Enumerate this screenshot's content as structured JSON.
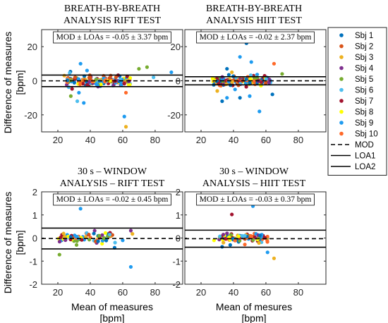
{
  "figure": {
    "ylabel_line1": "Difference of measures",
    "ylabel_line2": "[bpm]",
    "xlabel_left_line1": "Mean of measures",
    "xlabel_right_line1": "Mean of mesures",
    "xlabel_line2": "[bpm]"
  },
  "legend": {
    "placement": "right",
    "entries": [
      {
        "label": "Sbj 1",
        "color": "#0072BD",
        "kind": "point"
      },
      {
        "label": "Sbj 2",
        "color": "#D95319",
        "kind": "point"
      },
      {
        "label": "Sbj 3",
        "color": "#EDB120",
        "kind": "point"
      },
      {
        "label": "Sbj 4",
        "color": "#7E2F8E",
        "kind": "point"
      },
      {
        "label": "Sbj 5",
        "color": "#77AC30",
        "kind": "point"
      },
      {
        "label": "Sbj 6",
        "color": "#4DBEEE",
        "kind": "point"
      },
      {
        "label": "Sbj 7",
        "color": "#A2142F",
        "kind": "point"
      },
      {
        "label": "Sbj 8",
        "color": "#FFFF00",
        "kind": "point"
      },
      {
        "label": "Sbj 9",
        "color": "#1E9BF0",
        "kind": "point"
      },
      {
        "label": "Sbj 10",
        "color": "#FF6929",
        "kind": "point"
      },
      {
        "label": "MOD",
        "color": "#000000",
        "kind": "dashed"
      },
      {
        "label": "LOA1",
        "color": "#000000",
        "kind": "solid"
      },
      {
        "label": "LOA2",
        "color": "#000000",
        "kind": "solid"
      }
    ]
  },
  "chart_data": [
    {
      "type": "scatter",
      "title_line1": "BREATH-BY-BREATH",
      "title_line2": "ANALYSIS  RIFT TEST",
      "annotation": "MOD ± LOAs = -0.05 ± 3.37 bpm",
      "xlim": [
        10,
        97
      ],
      "ylim": [
        -30,
        30
      ],
      "xticks": [
        20,
        40,
        60,
        80
      ],
      "yticks": [
        -20,
        0,
        20
      ],
      "mod": -0.05,
      "loa_upper": 3.32,
      "loa_lower": -3.42,
      "spread": {
        "x_center": 45,
        "x_range": 20,
        "y_sd": 1.5,
        "n": 170,
        "seed": 11
      },
      "points": [
        {
          "x": 34,
          "y": 10,
          "s": 9
        },
        {
          "x": 33,
          "y": -7,
          "s": 9
        },
        {
          "x": 32,
          "y": -12,
          "s": 6
        },
        {
          "x": 36,
          "y": -13,
          "s": 9
        },
        {
          "x": 38,
          "y": 6,
          "s": 9
        },
        {
          "x": 61,
          "y": -21,
          "s": 9
        },
        {
          "x": 62,
          "y": -27,
          "s": 3
        },
        {
          "x": 62,
          "y": -7,
          "s": 10
        },
        {
          "x": 70,
          "y": 7,
          "s": 5
        },
        {
          "x": 75,
          "y": 8,
          "s": 5
        },
        {
          "x": 79,
          "y": 2,
          "s": 6
        },
        {
          "x": 90,
          "y": 5,
          "s": 9
        },
        {
          "x": 28,
          "y": -9,
          "s": 5
        },
        {
          "x": 24,
          "y": 3,
          "s": 3
        }
      ]
    },
    {
      "type": "scatter",
      "title_line1": "BREATH-BY-BREATH",
      "title_line2": "ANALYSIS  HIIT TEST",
      "annotation": "MOD ± LOAs = -0.02 ± 2.37 bpm",
      "xlim": [
        10,
        97
      ],
      "ylim": [
        -30,
        30
      ],
      "xticks": [
        20,
        40,
        60,
        80
      ],
      "yticks": [
        -20,
        0,
        20
      ],
      "mod": -0.02,
      "loa_upper": 2.35,
      "loa_lower": -2.39,
      "spread": {
        "x_center": 45,
        "x_range": 18,
        "y_sd": 1.4,
        "n": 160,
        "seed": 23
      },
      "points": [
        {
          "x": 48,
          "y": 22,
          "s": 1
        },
        {
          "x": 44,
          "y": 14,
          "s": 9
        },
        {
          "x": 51,
          "y": 11,
          "s": 9
        },
        {
          "x": 36,
          "y": 7,
          "s": 1
        },
        {
          "x": 39,
          "y": 5,
          "s": 3
        },
        {
          "x": 56,
          "y": -18,
          "s": 9
        },
        {
          "x": 36,
          "y": -10,
          "s": 9
        },
        {
          "x": 33,
          "y": -12,
          "s": 1
        },
        {
          "x": 44,
          "y": -10,
          "s": 1
        },
        {
          "x": 65,
          "y": 10,
          "s": 10
        },
        {
          "x": 64,
          "y": -8,
          "s": 1
        },
        {
          "x": 50,
          "y": -9,
          "s": 9
        },
        {
          "x": 30,
          "y": -6,
          "s": 3
        },
        {
          "x": 70,
          "y": 4,
          "s": 5
        }
      ]
    },
    {
      "type": "scatter",
      "title_line1": "30 s – WINDOW",
      "title_line2": "ANALYSIS – RIFT TEST",
      "annotation": "MOD ± LOAs = -0.02 ± 0.45 bpm",
      "xlim": [
        10,
        97
      ],
      "ylim": [
        -2,
        2
      ],
      "xticks": [
        20,
        40,
        60,
        80
      ],
      "yticks": [
        -2,
        -1,
        0,
        1,
        2
      ],
      "mod": -0.02,
      "loa_upper": 0.43,
      "loa_lower": -0.47,
      "spread": {
        "x_center": 38,
        "x_range": 18,
        "y_sd": 0.12,
        "n": 75,
        "seed": 37
      },
      "points": [
        {
          "x": 34,
          "y": 1.27,
          "s": 9
        },
        {
          "x": 65,
          "y": -1.25,
          "s": 9
        },
        {
          "x": 21,
          "y": -0.72,
          "s": 5
        },
        {
          "x": 55,
          "y": -0.42,
          "s": 1
        },
        {
          "x": 65,
          "y": 0.32,
          "s": 4
        },
        {
          "x": 66,
          "y": 0.18,
          "s": 3
        },
        {
          "x": 60,
          "y": -0.1,
          "s": 9
        },
        {
          "x": 52,
          "y": 0.15,
          "s": 6
        }
      ]
    },
    {
      "type": "scatter",
      "title_line1": "30 s – WINDOW",
      "title_line2": "ANALYSIS – HIIT TEST",
      "annotation": "MOD ± LOAs = -0.03 ± 0.37 bpm",
      "xlim": [
        10,
        97
      ],
      "ylim": [
        -2,
        2
      ],
      "xticks": [
        20,
        40,
        60,
        80
      ],
      "yticks": [
        -2,
        -1,
        0,
        1,
        2
      ],
      "mod": -0.03,
      "loa_upper": 0.34,
      "loa_lower": -0.4,
      "spread": {
        "x_center": 46,
        "x_range": 15,
        "y_sd": 0.1,
        "n": 90,
        "seed": 53
      },
      "points": [
        {
          "x": 39,
          "y": 1.02,
          "s": 7
        },
        {
          "x": 52,
          "y": 1.38,
          "s": 9
        },
        {
          "x": 61,
          "y": -0.62,
          "s": 9
        },
        {
          "x": 65,
          "y": -0.88,
          "s": 3
        },
        {
          "x": 33,
          "y": -0.38,
          "s": 1
        },
        {
          "x": 38,
          "y": -0.3,
          "s": 1
        },
        {
          "x": 47,
          "y": -0.28,
          "s": 10
        },
        {
          "x": 28,
          "y": -0.1,
          "s": 8
        }
      ]
    }
  ]
}
